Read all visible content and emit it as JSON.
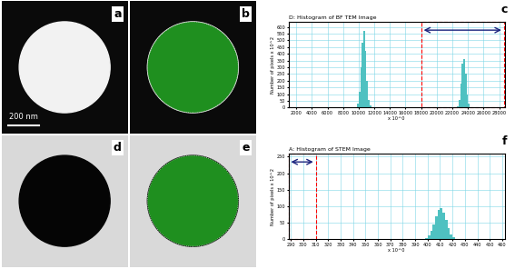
{
  "images": [
    {
      "annotation": "a",
      "style": "bright",
      "scale_bar": "200 nm"
    },
    {
      "annotation": "b",
      "style": "bright_masked"
    },
    {
      "annotation": "d",
      "style": "dark"
    },
    {
      "annotation": "e",
      "style": "dark_masked"
    }
  ],
  "chart_data": [
    {
      "type": "histogram",
      "annotation": "c",
      "title": "D: Histogram of BF TEM Image",
      "x_label": "x 10^0",
      "y_label": "Number of pixels x 10^2",
      "bins": [
        9600,
        9800,
        10000,
        10200,
        10400,
        10600,
        10800,
        11000,
        11200,
        11400,
        11600,
        11800,
        22600,
        22800,
        23000,
        23200,
        23400,
        23600,
        23800,
        24000,
        24200,
        24400
      ],
      "values": [
        5,
        30,
        120,
        300,
        480,
        570,
        420,
        200,
        60,
        15,
        5,
        0,
        10,
        60,
        180,
        330,
        360,
        250,
        100,
        30,
        5
      ],
      "color": "#4fc1c1",
      "xlim": [
        1000,
        28700
      ],
      "xticks": [
        2000,
        4000,
        6000,
        8000,
        10000,
        12000,
        14000,
        16000,
        18000,
        20000,
        22000,
        24000,
        26000,
        28000
      ],
      "ylim": [
        0,
        640
      ],
      "yticks": [
        0,
        50,
        100,
        150,
        200,
        250,
        300,
        350,
        400,
        450,
        500,
        550,
        600
      ],
      "grid": true,
      "selection": [
        18000,
        28600
      ]
    },
    {
      "type": "histogram",
      "annotation": "f",
      "title": "A: Histogram of STEM Image",
      "x_label": "x 10^0",
      "y_label": "Number of pixels x 10^2",
      "bins": [
        396,
        398,
        400,
        402,
        404,
        406,
        408,
        410,
        412,
        414,
        416,
        418,
        420,
        422,
        424
      ],
      "values": [
        2,
        5,
        12,
        25,
        45,
        70,
        88,
        95,
        80,
        60,
        35,
        15,
        6,
        2
      ],
      "color": "#4fc1c1",
      "xlim": [
        288,
        462
      ],
      "xticks": [
        290,
        300,
        310,
        320,
        330,
        340,
        350,
        360,
        370,
        380,
        390,
        400,
        410,
        420,
        430,
        440,
        450,
        460
      ],
      "ylim": [
        0,
        260
      ],
      "yticks": [
        0,
        50,
        100,
        150,
        200,
        250
      ],
      "grid": true,
      "selection": [
        288,
        310
      ]
    }
  ]
}
